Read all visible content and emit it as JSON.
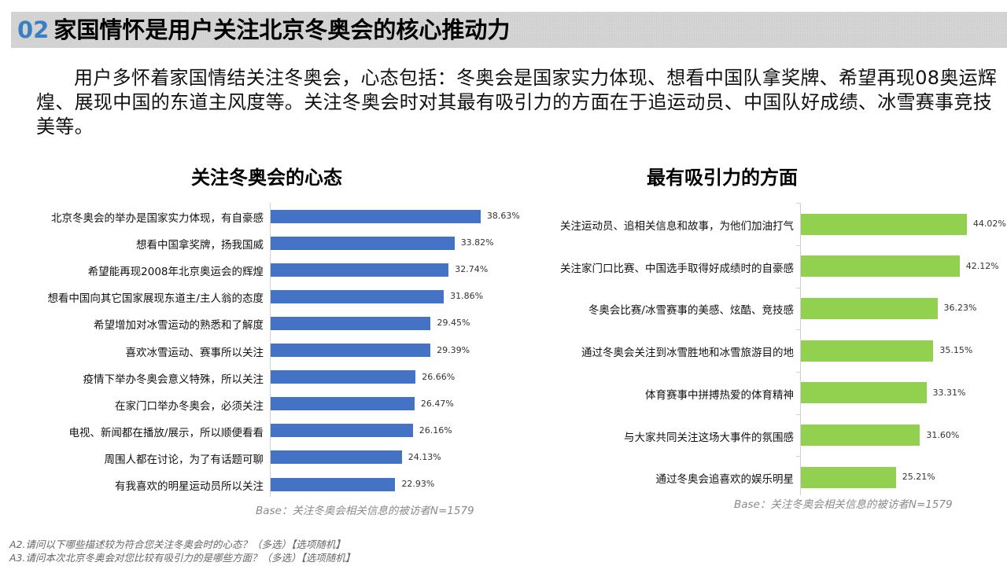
{
  "header": {
    "number": "02",
    "title": "家国情怀是用户关注北京冬奥会的核心推动力"
  },
  "intro": "用户多怀着家国情结关注冬奥会，心态包括：冬奥会是国家实力体现、想看中国队拿奖牌、希望再现08奥运辉煌、展现中国的东道主风度等。关注冬奥会时对其最有吸引力的方面在于追运动员、中国队好成绩、冰雪赛事竞技美等。",
  "colors": {
    "left_bar": "#4472c4",
    "right_bar": "#92d050",
    "title_number": "#3a7fc4",
    "title_bg": "#d4d4d4"
  },
  "left_chart": {
    "title": "关注冬奥会的心态",
    "base": "Base：关注冬奥会相关信息的被访者N=1579",
    "labels": [
      "北京冬奥会的举办是国家实力体现，有自豪感",
      "想看中国拿奖牌，扬我国威",
      "希望能再现2008年北京奥运会的辉煌",
      "想看中国向其它国家展现东道主/主人翁的态度",
      "希望增加对冰雪运动的熟悉和了解度",
      "喜欢冰雪运动、赛事所以关注",
      "疫情下举办冬奥会意义特殊，所以关注",
      "在家门口举办冬奥会，必须关注",
      "电视、新闻都在播放/展示，所以顺便看看",
      "周围人都在讨论，为了有话题可聊",
      "有我喜欢的明星运动员所以关注"
    ],
    "values": [
      "38.63%",
      "33.82%",
      "32.74%",
      "31.86%",
      "29.45%",
      "29.39%",
      "26.66%",
      "26.47%",
      "26.16%",
      "24.13%",
      "22.93%"
    ]
  },
  "right_chart": {
    "title": "最有吸引力的方面",
    "base": "Base：关注冬奥会相关信息的被访者N=1579",
    "labels": [
      "关注运动员、追相关信息和故事，为他们加油打气",
      "关注家门口比赛、中国选手取得好成绩时的自豪感",
      "冬奥会比赛/冰雪赛事的美感、炫酷、竞技感",
      "通过冬奥会关注到冰雪胜地和冰雪旅游目的地",
      "体育赛事中拼搏热爱的体育精神",
      "与大家共同关注这场大事件的氛围感",
      "通过冬奥会追喜欢的娱乐明星"
    ],
    "values": [
      "44.02%",
      "42.12%",
      "36.23%",
      "35.15%",
      "33.31%",
      "31.60%",
      "25.21%"
    ]
  },
  "footnotes": [
    "A2.请问以下哪些描述较为符合您关注冬奥会时的心态？（多选）【选项随机】",
    "A3.请问本次北京冬奥会对您比较有吸引力的是哪些方面？（多选）【选项随机】"
  ],
  "chart_data": [
    {
      "type": "bar",
      "orientation": "horizontal",
      "title": "关注冬奥会的心态",
      "categories": [
        "北京冬奥会的举办是国家实力体现，有自豪感",
        "想看中国拿奖牌，扬我国威",
        "希望能再现2008年北京奥运会的辉煌",
        "想看中国向其它国家展现东道主/主人翁的态度",
        "希望增加对冰雪运动的熟悉和了解度",
        "喜欢冰雪运动、赛事所以关注",
        "疫情下举办冬奥会意义特殊，所以关注",
        "在家门口举办冬奥会，必须关注",
        "电视、新闻都在播放/展示，所以顺便看看",
        "周围人都在讨论，为了有话题可聊",
        "有我喜欢的明星运动员所以关注"
      ],
      "values": [
        38.63,
        33.82,
        32.74,
        31.86,
        29.45,
        29.39,
        26.66,
        26.47,
        26.16,
        24.13,
        22.93
      ],
      "unit": "%",
      "color": "#4472c4",
      "xlabel": "",
      "ylabel": "",
      "grid": false,
      "legend": "none",
      "note": "Base：关注冬奥会相关信息的被访者N=1579"
    },
    {
      "type": "bar",
      "orientation": "horizontal",
      "title": "最有吸引力的方面",
      "categories": [
        "关注运动员、追相关信息和故事，为他们加油打气",
        "关注家门口比赛、中国选手取得好成绩时的自豪感",
        "冬奥会比赛/冰雪赛事的美感、炫酷、竞技感",
        "通过冬奥会关注到冰雪胜地和冰雪旅游目的地",
        "体育赛事中拼搏热爱的体育精神",
        "与大家共同关注这场大事件的氛围感",
        "通过冬奥会追喜欢的娱乐明星"
      ],
      "values": [
        44.02,
        42.12,
        36.23,
        35.15,
        33.31,
        31.6,
        25.21
      ],
      "unit": "%",
      "color": "#92d050",
      "xlabel": "",
      "ylabel": "",
      "grid": false,
      "legend": "none",
      "note": "Base：关注冬奥会相关信息的被访者N=1579"
    }
  ]
}
